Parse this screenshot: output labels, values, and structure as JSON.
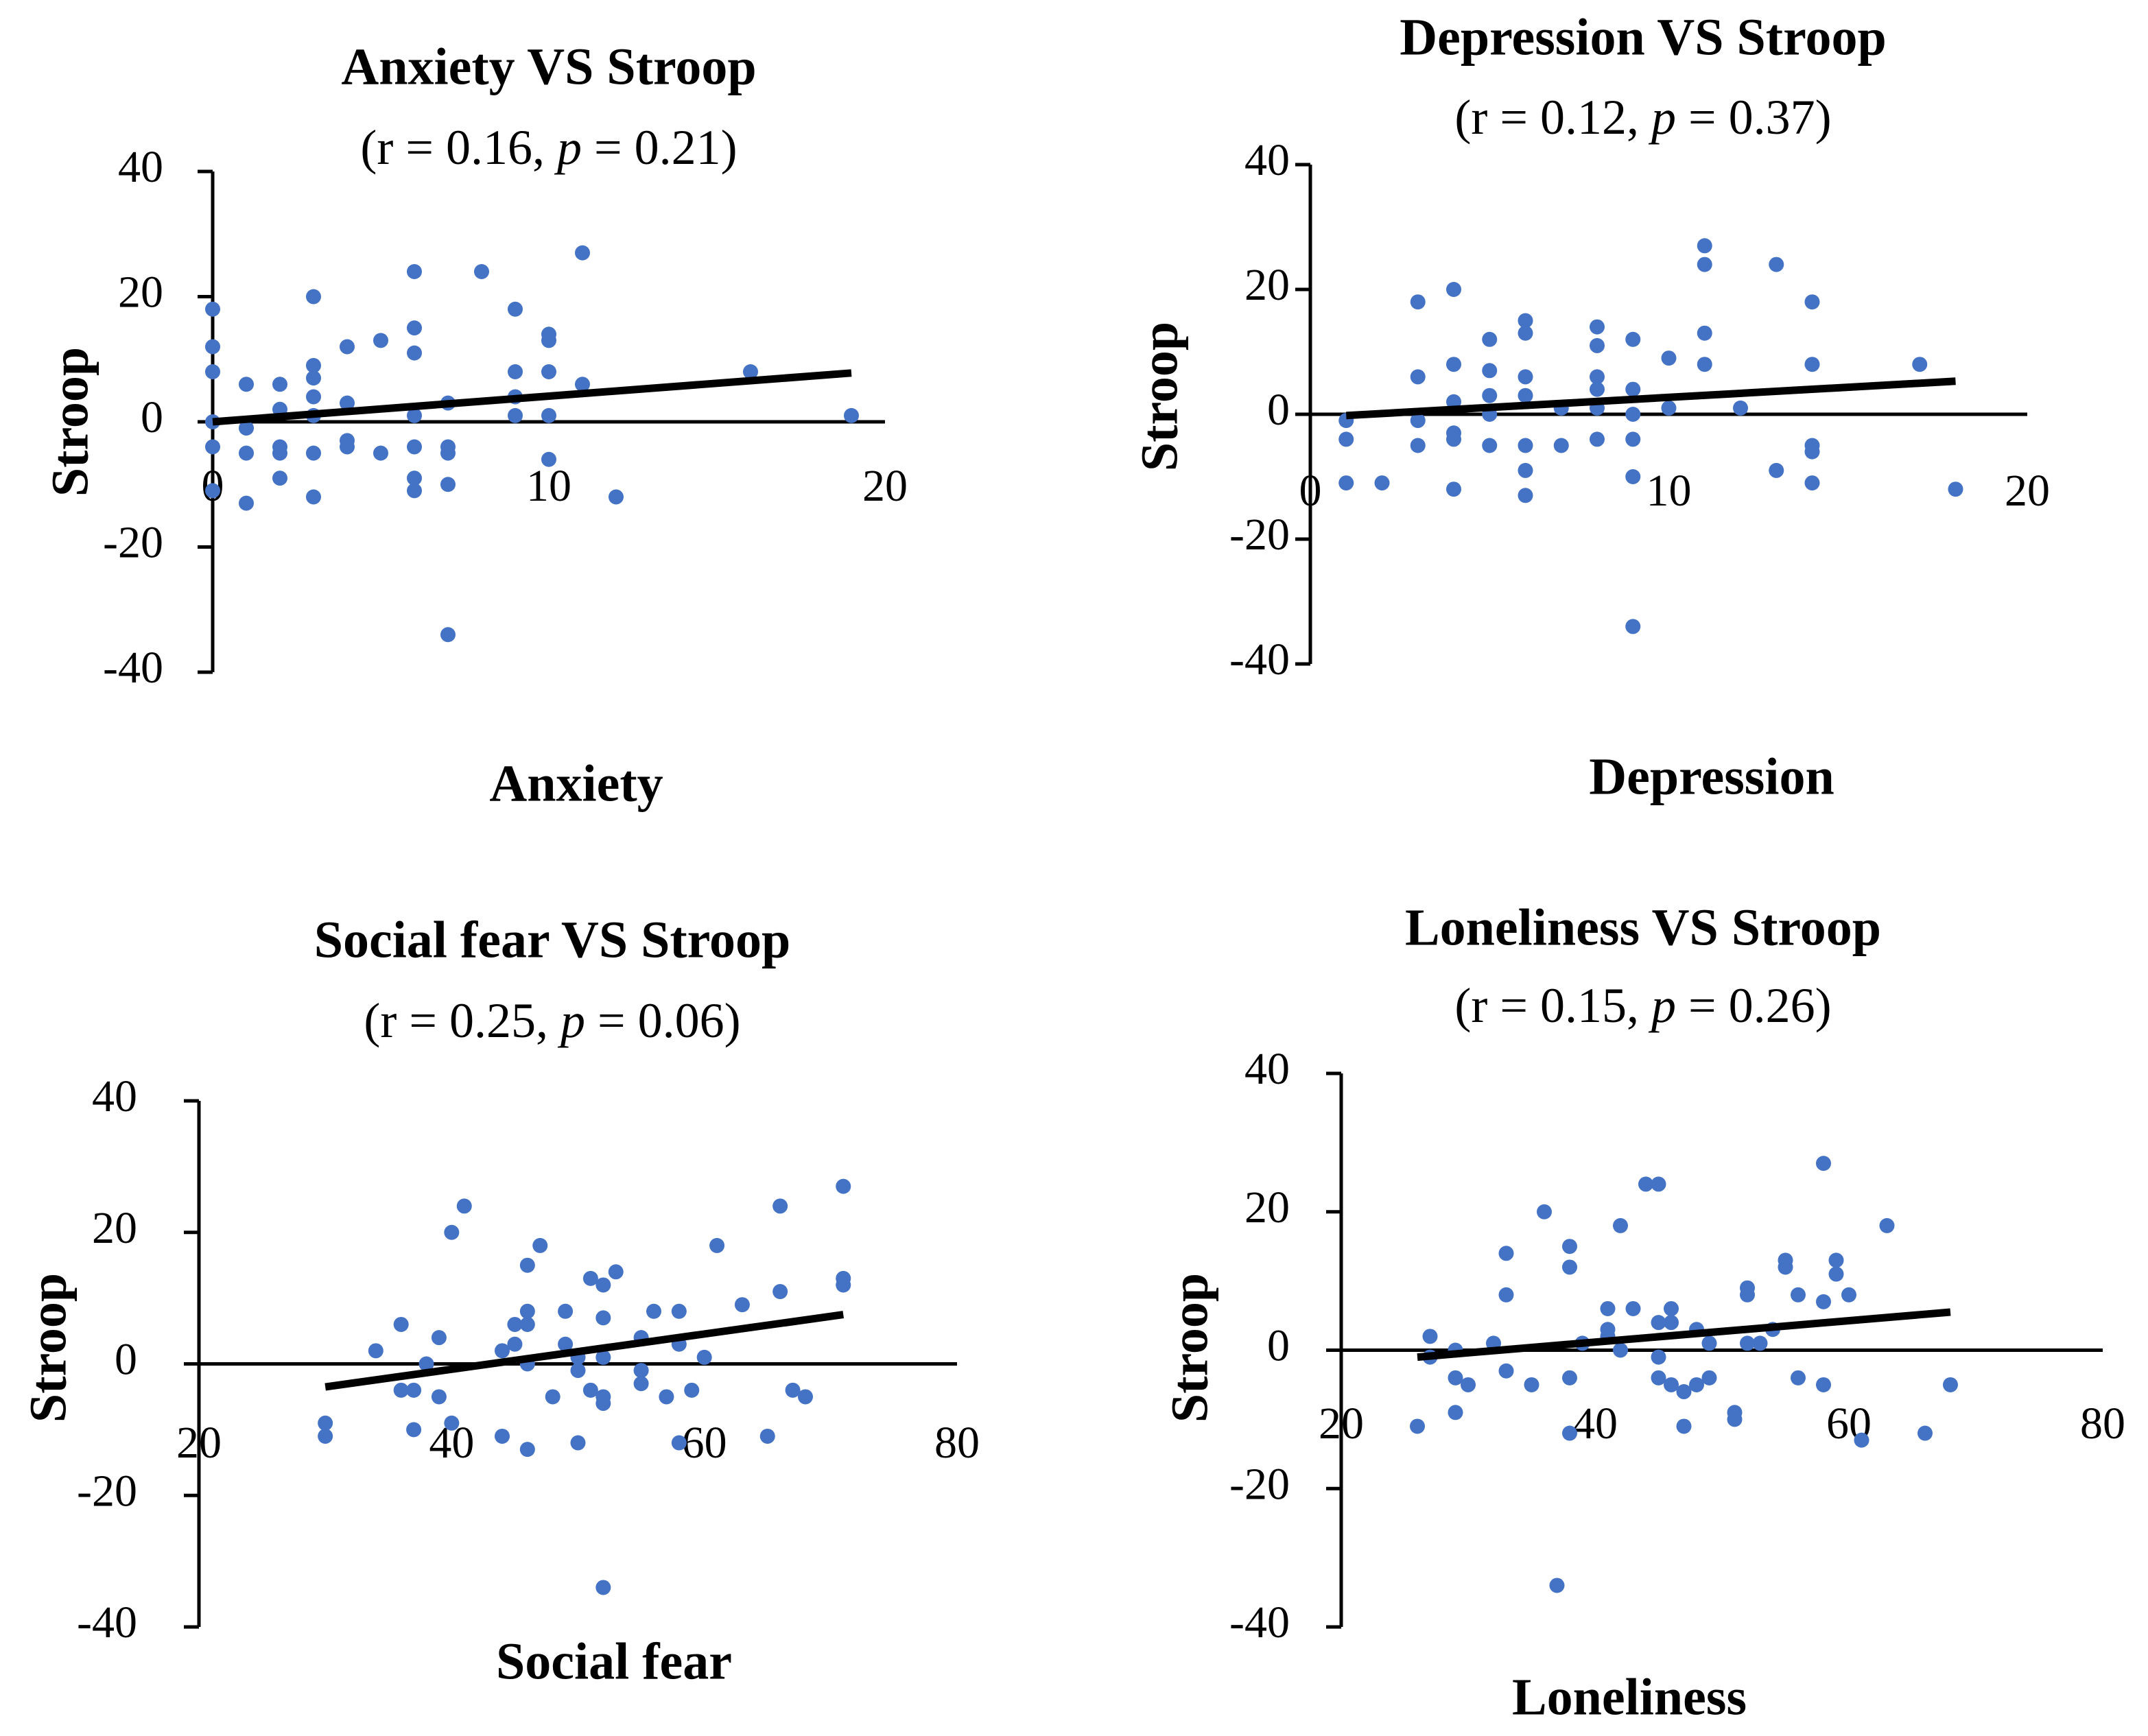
{
  "figure": {
    "panel_order": [
      "anxiety",
      "depression",
      "social_fear",
      "loneliness"
    ]
  },
  "chart_data": [
    {
      "id": "anxiety",
      "type": "scatter",
      "title": "Anxiety VS Stroop",
      "subtitle": {
        "prefix": "(r = 0.16, ",
        "p_symbol": "p",
        "suffix": " = 0.21)"
      },
      "xlabel": "Anxiety",
      "ylabel": "Stroop",
      "xlim": [
        0,
        20
      ],
      "ylim": [
        -40,
        40
      ],
      "x_ticks": [
        0,
        10,
        20
      ],
      "y_ticks": [
        40,
        20,
        0,
        -20,
        -40
      ],
      "trendline": {
        "x": [
          0,
          19
        ],
        "y": [
          0,
          7.8
        ]
      },
      "points": [
        [
          0,
          18
        ],
        [
          0,
          12
        ],
        [
          0,
          8
        ],
        [
          0,
          0
        ],
        [
          0,
          -4
        ],
        [
          0,
          -11
        ],
        [
          1,
          6
        ],
        [
          1,
          -1
        ],
        [
          1,
          -5
        ],
        [
          1,
          -13
        ],
        [
          2,
          6
        ],
        [
          2,
          2
        ],
        [
          2,
          -4
        ],
        [
          2,
          -5
        ],
        [
          2,
          -9
        ],
        [
          3,
          20
        ],
        [
          3,
          9
        ],
        [
          3,
          7
        ],
        [
          3,
          4
        ],
        [
          3,
          1
        ],
        [
          3,
          -5
        ],
        [
          3,
          -12
        ],
        [
          4,
          12
        ],
        [
          4,
          3
        ],
        [
          4,
          -3
        ],
        [
          4,
          -4
        ],
        [
          5,
          13
        ],
        [
          5,
          -5
        ],
        [
          6,
          24
        ],
        [
          6,
          15
        ],
        [
          6,
          11
        ],
        [
          6,
          1
        ],
        [
          6,
          -4
        ],
        [
          6,
          -9
        ],
        [
          6,
          -11
        ],
        [
          7,
          3
        ],
        [
          7,
          -4
        ],
        [
          7,
          -5
        ],
        [
          7,
          -10
        ],
        [
          7,
          -34
        ],
        [
          8,
          24
        ],
        [
          9,
          18
        ],
        [
          9,
          8
        ],
        [
          9,
          4
        ],
        [
          9,
          1
        ],
        [
          10,
          14
        ],
        [
          10,
          13
        ],
        [
          10,
          8
        ],
        [
          10,
          1
        ],
        [
          10,
          -6
        ],
        [
          11,
          27
        ],
        [
          11,
          6
        ],
        [
          12,
          -12
        ],
        [
          16,
          8
        ],
        [
          19,
          1
        ]
      ]
    },
    {
      "id": "depression",
      "type": "scatter",
      "title": "Depression VS Stroop",
      "subtitle": {
        "prefix": "(r = 0.12, ",
        "p_symbol": "p",
        "suffix": " = 0.37)"
      },
      "xlabel": "Depression",
      "ylabel": "Stroop",
      "xlim": [
        0,
        20
      ],
      "ylim": [
        -40,
        40
      ],
      "x_ticks": [
        0,
        10,
        20
      ],
      "y_ticks": [
        40,
        20,
        0,
        -20,
        -40
      ],
      "trendline": {
        "x": [
          1,
          18
        ],
        "y": [
          -0.2,
          5.3
        ]
      },
      "points": [
        [
          1,
          -1
        ],
        [
          1,
          -4
        ],
        [
          1,
          -11
        ],
        [
          2,
          -11
        ],
        [
          3,
          18
        ],
        [
          3,
          6
        ],
        [
          3,
          -1
        ],
        [
          3,
          -5
        ],
        [
          4,
          20
        ],
        [
          4,
          8
        ],
        [
          4,
          2
        ],
        [
          4,
          -3
        ],
        [
          4,
          -4
        ],
        [
          4,
          -12
        ],
        [
          5,
          12
        ],
        [
          5,
          7
        ],
        [
          5,
          3
        ],
        [
          5,
          0
        ],
        [
          5,
          -5
        ],
        [
          6,
          15
        ],
        [
          6,
          13
        ],
        [
          6,
          6
        ],
        [
          6,
          3
        ],
        [
          6,
          -5
        ],
        [
          6,
          -9
        ],
        [
          6,
          -13
        ],
        [
          7,
          1
        ],
        [
          7,
          -5
        ],
        [
          8,
          14
        ],
        [
          8,
          11
        ],
        [
          8,
          6
        ],
        [
          8,
          4
        ],
        [
          8,
          1
        ],
        [
          8,
          -4
        ],
        [
          9,
          12
        ],
        [
          9,
          4
        ],
        [
          9,
          0
        ],
        [
          9,
          -4
        ],
        [
          9,
          -10
        ],
        [
          9,
          -34
        ],
        [
          10,
          9
        ],
        [
          10,
          1
        ],
        [
          11,
          27
        ],
        [
          11,
          24
        ],
        [
          11,
          13
        ],
        [
          11,
          8
        ],
        [
          12,
          1
        ],
        [
          13,
          24
        ],
        [
          13,
          -9
        ],
        [
          14,
          18
        ],
        [
          14,
          8
        ],
        [
          14,
          -5
        ],
        [
          14,
          -6
        ],
        [
          14,
          -11
        ],
        [
          17,
          8
        ],
        [
          18,
          -12
        ]
      ]
    },
    {
      "id": "social_fear",
      "type": "scatter",
      "title": "Social fear VS Stroop",
      "subtitle": {
        "prefix": "(r = 0.25, ",
        "p_symbol": "p",
        "suffix": " = 0.06)"
      },
      "xlabel": "Social fear",
      "ylabel": "Stroop",
      "xlim": [
        20,
        80
      ],
      "ylim": [
        -40,
        40
      ],
      "x_ticks": [
        20,
        40,
        60,
        80
      ],
      "y_ticks": [
        40,
        20,
        0,
        -20,
        -40
      ],
      "trendline": {
        "x": [
          30,
          71
        ],
        "y": [
          -3.5,
          7.5
        ]
      },
      "points": [
        [
          30,
          -9
        ],
        [
          30,
          -11
        ],
        [
          34,
          2
        ],
        [
          36,
          6
        ],
        [
          36,
          -4
        ],
        [
          37,
          -4
        ],
        [
          37,
          -10
        ],
        [
          38,
          0
        ],
        [
          39,
          4
        ],
        [
          39,
          -5
        ],
        [
          40,
          20
        ],
        [
          40,
          -9
        ],
        [
          41,
          24
        ],
        [
          44,
          2
        ],
        [
          44,
          -11
        ],
        [
          45,
          6
        ],
        [
          45,
          3
        ],
        [
          46,
          15
        ],
        [
          46,
          8
        ],
        [
          46,
          6
        ],
        [
          46,
          0
        ],
        [
          46,
          -13
        ],
        [
          47,
          18
        ],
        [
          48,
          -5
        ],
        [
          49,
          8
        ],
        [
          49,
          3
        ],
        [
          50,
          1
        ],
        [
          50,
          -1
        ],
        [
          50,
          -12
        ],
        [
          51,
          13
        ],
        [
          51,
          -4
        ],
        [
          52,
          12
        ],
        [
          52,
          7
        ],
        [
          52,
          1
        ],
        [
          52,
          -5
        ],
        [
          52,
          -6
        ],
        [
          52,
          -34
        ],
        [
          53,
          14
        ],
        [
          55,
          4
        ],
        [
          55,
          -1
        ],
        [
          55,
          -3
        ],
        [
          56,
          8
        ],
        [
          57,
          -5
        ],
        [
          58,
          8
        ],
        [
          58,
          3
        ],
        [
          58,
          -12
        ],
        [
          59,
          -4
        ],
        [
          60,
          1
        ],
        [
          61,
          18
        ],
        [
          63,
          9
        ],
        [
          65,
          -11
        ],
        [
          66,
          24
        ],
        [
          66,
          11
        ],
        [
          67,
          -4
        ],
        [
          68,
          -5
        ],
        [
          71,
          27
        ],
        [
          71,
          13
        ],
        [
          71,
          12
        ]
      ]
    },
    {
      "id": "loneliness",
      "type": "scatter",
      "title": "Loneliness VS Stroop",
      "subtitle": {
        "prefix": "(r = 0.15, ",
        "p_symbol": "p",
        "suffix": " = 0.26)"
      },
      "xlabel": "Loneliness",
      "ylabel": "Stroop",
      "xlim": [
        20,
        80
      ],
      "ylim": [
        -40,
        40
      ],
      "x_ticks": [
        20,
        40,
        60,
        80
      ],
      "y_ticks": [
        40,
        20,
        0,
        -20,
        -40
      ],
      "trendline": {
        "x": [
          26,
          68
        ],
        "y": [
          -1,
          5.5
        ]
      },
      "points": [
        [
          26,
          -11
        ],
        [
          27,
          2
        ],
        [
          27,
          -1
        ],
        [
          29,
          0
        ],
        [
          29,
          -4
        ],
        [
          29,
          -9
        ],
        [
          30,
          -5
        ],
        [
          32,
          1
        ],
        [
          33,
          14
        ],
        [
          33,
          8
        ],
        [
          33,
          -3
        ],
        [
          35,
          -5
        ],
        [
          36,
          20
        ],
        [
          37,
          -34
        ],
        [
          38,
          15
        ],
        [
          38,
          12
        ],
        [
          38,
          -4
        ],
        [
          38,
          -12
        ],
        [
          39,
          1
        ],
        [
          41,
          6
        ],
        [
          41,
          3
        ],
        [
          41,
          2
        ],
        [
          42,
          18
        ],
        [
          42,
          0
        ],
        [
          43,
          6
        ],
        [
          44,
          24
        ],
        [
          45,
          24
        ],
        [
          45,
          4
        ],
        [
          45,
          -1
        ],
        [
          45,
          -4
        ],
        [
          46,
          6
        ],
        [
          46,
          4
        ],
        [
          46,
          -5
        ],
        [
          47,
          -6
        ],
        [
          47,
          -11
        ],
        [
          48,
          3
        ],
        [
          48,
          -5
        ],
        [
          49,
          1
        ],
        [
          49,
          -4
        ],
        [
          51,
          -9
        ],
        [
          51,
          -10
        ],
        [
          52,
          9
        ],
        [
          52,
          8
        ],
        [
          52,
          1
        ],
        [
          53,
          1
        ],
        [
          54,
          3
        ],
        [
          55,
          13
        ],
        [
          55,
          12
        ],
        [
          56,
          8
        ],
        [
          56,
          -4
        ],
        [
          58,
          27
        ],
        [
          58,
          7
        ],
        [
          58,
          -5
        ],
        [
          59,
          13
        ],
        [
          59,
          11
        ],
        [
          60,
          8
        ],
        [
          61,
          -13
        ],
        [
          63,
          18
        ],
        [
          66,
          -12
        ],
        [
          68,
          -5
        ]
      ]
    }
  ]
}
